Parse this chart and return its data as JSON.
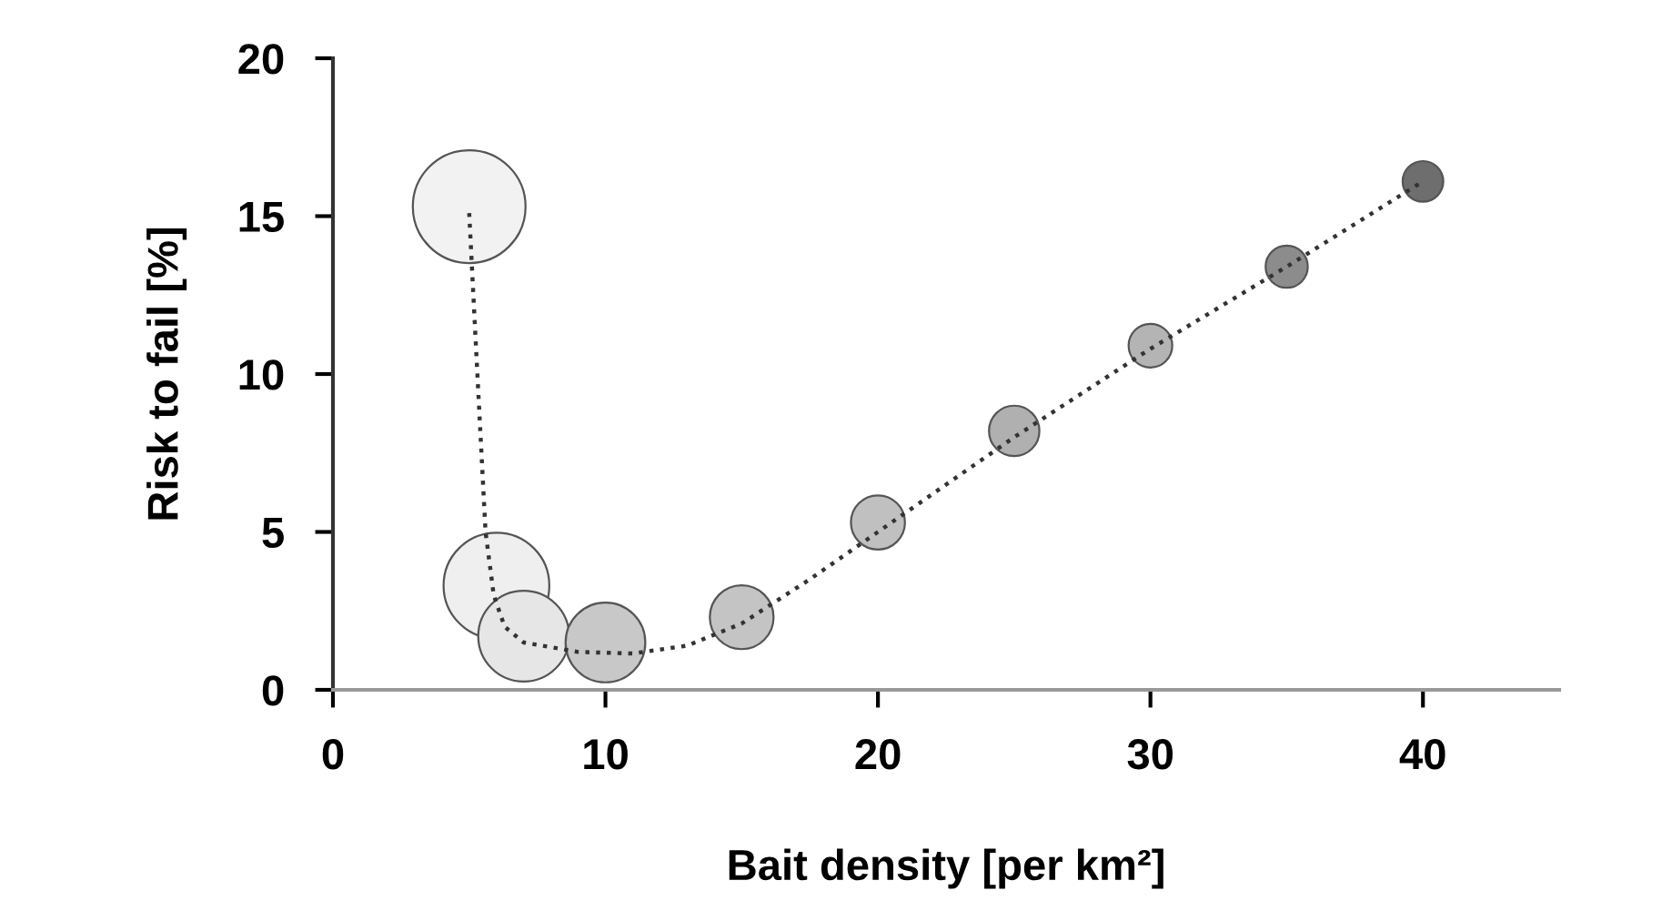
{
  "chart_data": {
    "type": "bubble",
    "xlabel": "Bait density [per km²]",
    "ylabel": "Risk to fail [%]",
    "xlim": [
      0,
      45
    ],
    "xticks": [
      0,
      10,
      20,
      30,
      40
    ],
    "ylim": [
      0,
      20
    ],
    "yticks": [
      0,
      5,
      10,
      15,
      20
    ],
    "grid": false,
    "legend": false,
    "series": [
      {
        "x": [
          5,
          6,
          7,
          10,
          15,
          20,
          25,
          30,
          35,
          40
        ],
        "values": [
          15.3,
          3.3,
          1.7,
          1.5,
          2.3,
          5.3,
          8.2,
          10.9,
          13.4,
          16.1
        ],
        "sizes": [
          1,
          0.88,
          0.65,
          0.5,
          0.32,
          0.23,
          0.2,
          0.15,
          0.14,
          0.13
        ],
        "colors": [
          "#f2f2f2",
          "#efefef",
          "#e6e6e6",
          "#c8c8c8",
          "#c4c4c4",
          "#c0c0c0",
          "#b0b0b0",
          "#b4b4b4",
          "#8c8c8c",
          "#6e6e6e"
        ],
        "marker": "circle"
      },
      {
        "type": "line",
        "color": "#333333",
        "line_style": "dotted",
        "marker": "none",
        "x": [
          5,
          5.3,
          5.6,
          5.9,
          6.3,
          7,
          9,
          11,
          13,
          15,
          17.5,
          20,
          25,
          30,
          35,
          40
        ],
        "values": [
          15.1,
          10,
          5,
          3,
          2,
          1.5,
          1.2,
          1.15,
          1.4,
          2.1,
          3.5,
          5,
          8,
          10.8,
          13.4,
          16.1
        ]
      }
    ]
  }
}
